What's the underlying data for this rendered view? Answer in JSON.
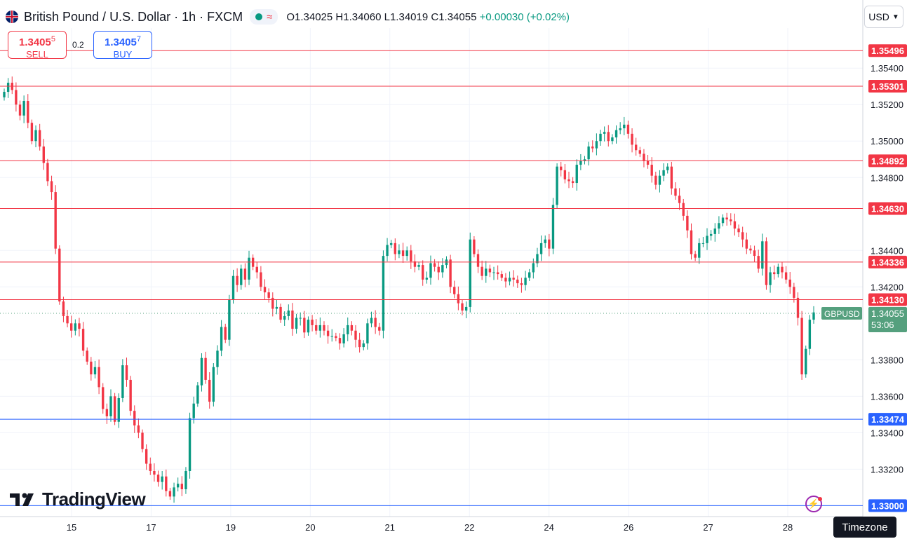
{
  "header": {
    "title": "British Pound / U.S. Dollar · 1h · FXCM",
    "ohlc": {
      "open": "O1.34025",
      "high": "H1.34060",
      "low": "L1.34019",
      "close": "C1.34055",
      "change": "+0.00030 (+0.02%)"
    }
  },
  "trade": {
    "sell_price_main": "1.3405",
    "sell_price_sup": "5",
    "sell_label": "SELL",
    "spread": "0.2",
    "buy_price_main": "1.3405",
    "buy_price_sup": "7",
    "buy_label": "BUY"
  },
  "currency_button": "USD",
  "brand": "TradingView",
  "timezone_button": "Timezone",
  "colors": {
    "up": "#089981",
    "down": "#f23645",
    "resistance": "#f23645",
    "support": "#2962ff",
    "last_price": "#55a07e"
  },
  "icons": [
    "flag-gb-icon",
    "market-open-dot-icon",
    "wave-icon",
    "chevron-down-icon",
    "tradingview-logo-icon",
    "flash-icon"
  ],
  "chart_data": {
    "type": "candlestick",
    "symbol": "GBPUSD",
    "interval": "1h",
    "ylim": [
      1.3294,
      1.3562
    ],
    "y_ticks": [
      "1.33200",
      "1.33400",
      "1.33600",
      "1.33800",
      "1.34200",
      "1.34400",
      "1.34800",
      "1.35000",
      "1.35200",
      "1.35400"
    ],
    "x_ticks": [
      "15",
      "17",
      "19",
      "20",
      "21",
      "22",
      "24",
      "26",
      "27",
      "28"
    ],
    "horizontal_levels": [
      {
        "value": 1.35496,
        "label": "1.35496",
        "kind": "resistance"
      },
      {
        "value": 1.35301,
        "label": "1.35301",
        "kind": "resistance"
      },
      {
        "value": 1.34892,
        "label": "1.34892",
        "kind": "resistance"
      },
      {
        "value": 1.3463,
        "label": "1.34630",
        "kind": "resistance"
      },
      {
        "value": 1.34336,
        "label": "1.34336",
        "kind": "resistance"
      },
      {
        "value": 1.3413,
        "label": "1.34130",
        "kind": "resistance"
      },
      {
        "value": 1.33474,
        "label": "1.33474",
        "kind": "support"
      },
      {
        "value": 1.33,
        "label": "1.33000",
        "kind": "support"
      }
    ],
    "last_price": {
      "value": 1.34055,
      "label": "1.34055",
      "countdown": "53:06",
      "symbol_tag": "GBPUSD"
    },
    "close_path": [
      1.3527,
      1.3532,
      1.3528,
      1.352,
      1.3514,
      1.3522,
      1.351,
      1.35,
      1.3506,
      1.3497,
      1.3488,
      1.3478,
      1.3472,
      1.3441,
      1.3412,
      1.3404,
      1.34,
      1.3396,
      1.34,
      1.3397,
      1.3385,
      1.3379,
      1.3372,
      1.3376,
      1.3365,
      1.3353,
      1.3349,
      1.336,
      1.3346,
      1.3359,
      1.3377,
      1.3369,
      1.3352,
      1.3344,
      1.334,
      1.3331,
      1.3323,
      1.3319,
      1.3317,
      1.3313,
      1.3316,
      1.3308,
      1.3305,
      1.331,
      1.3312,
      1.3309,
      1.3319,
      1.3348,
      1.3356,
      1.3366,
      1.3381,
      1.3369,
      1.3357,
      1.3376,
      1.3385,
      1.3398,
      1.3391,
      1.3413,
      1.3426,
      1.3421,
      1.343,
      1.3424,
      1.3436,
      1.3431,
      1.3428,
      1.342,
      1.3417,
      1.3414,
      1.3408,
      1.3409,
      1.3402,
      1.3404,
      1.3407,
      1.3397,
      1.3403,
      1.3403,
      1.3395,
      1.3402,
      1.3399,
      1.3396,
      1.3399,
      1.3396,
      1.3393,
      1.3393,
      1.3392,
      1.3389,
      1.3394,
      1.3399,
      1.3396,
      1.3391,
      1.3387,
      1.3389,
      1.34,
      1.3403,
      1.3398,
      1.3396,
      1.3437,
      1.3443,
      1.3444,
      1.3438,
      1.344,
      1.3437,
      1.344,
      1.3434,
      1.3431,
      1.3432,
      1.3424,
      1.3425,
      1.3433,
      1.3431,
      1.3428,
      1.3432,
      1.3435,
      1.342,
      1.3416,
      1.3411,
      1.3407,
      1.3409,
      1.3446,
      1.3438,
      1.3431,
      1.3426,
      1.343,
      1.3428,
      1.3428,
      1.3427,
      1.3425,
      1.3423,
      1.3425,
      1.3424,
      1.3422,
      1.3421,
      1.3425,
      1.3428,
      1.3433,
      1.3438,
      1.3444,
      1.3446,
      1.3441,
      1.3465,
      1.3486,
      1.3484,
      1.3479,
      1.3478,
      1.3477,
      1.3487,
      1.3489,
      1.349,
      1.3497,
      1.3496,
      1.35,
      1.3504,
      1.3505,
      1.35,
      1.3502,
      1.3506,
      1.3507,
      1.3509,
      1.3504,
      1.3498,
      1.3495,
      1.3493,
      1.3489,
      1.3487,
      1.3481,
      1.3476,
      1.3481,
      1.3484,
      1.3486,
      1.3474,
      1.347,
      1.3466,
      1.3459,
      1.3451,
      1.3438,
      1.3436,
      1.3444,
      1.3444,
      1.3448,
      1.3449,
      1.3452,
      1.3455,
      1.3458,
      1.3457,
      1.3456,
      1.3452,
      1.345,
      1.3446,
      1.3441,
      1.344,
      1.3437,
      1.343,
      1.3445,
      1.3421,
      1.3428,
      1.3427,
      1.3431,
      1.3428,
      1.3424,
      1.342,
      1.3414,
      1.3403,
      1.3372,
      1.3386,
      1.3402,
      1.3406
    ]
  }
}
